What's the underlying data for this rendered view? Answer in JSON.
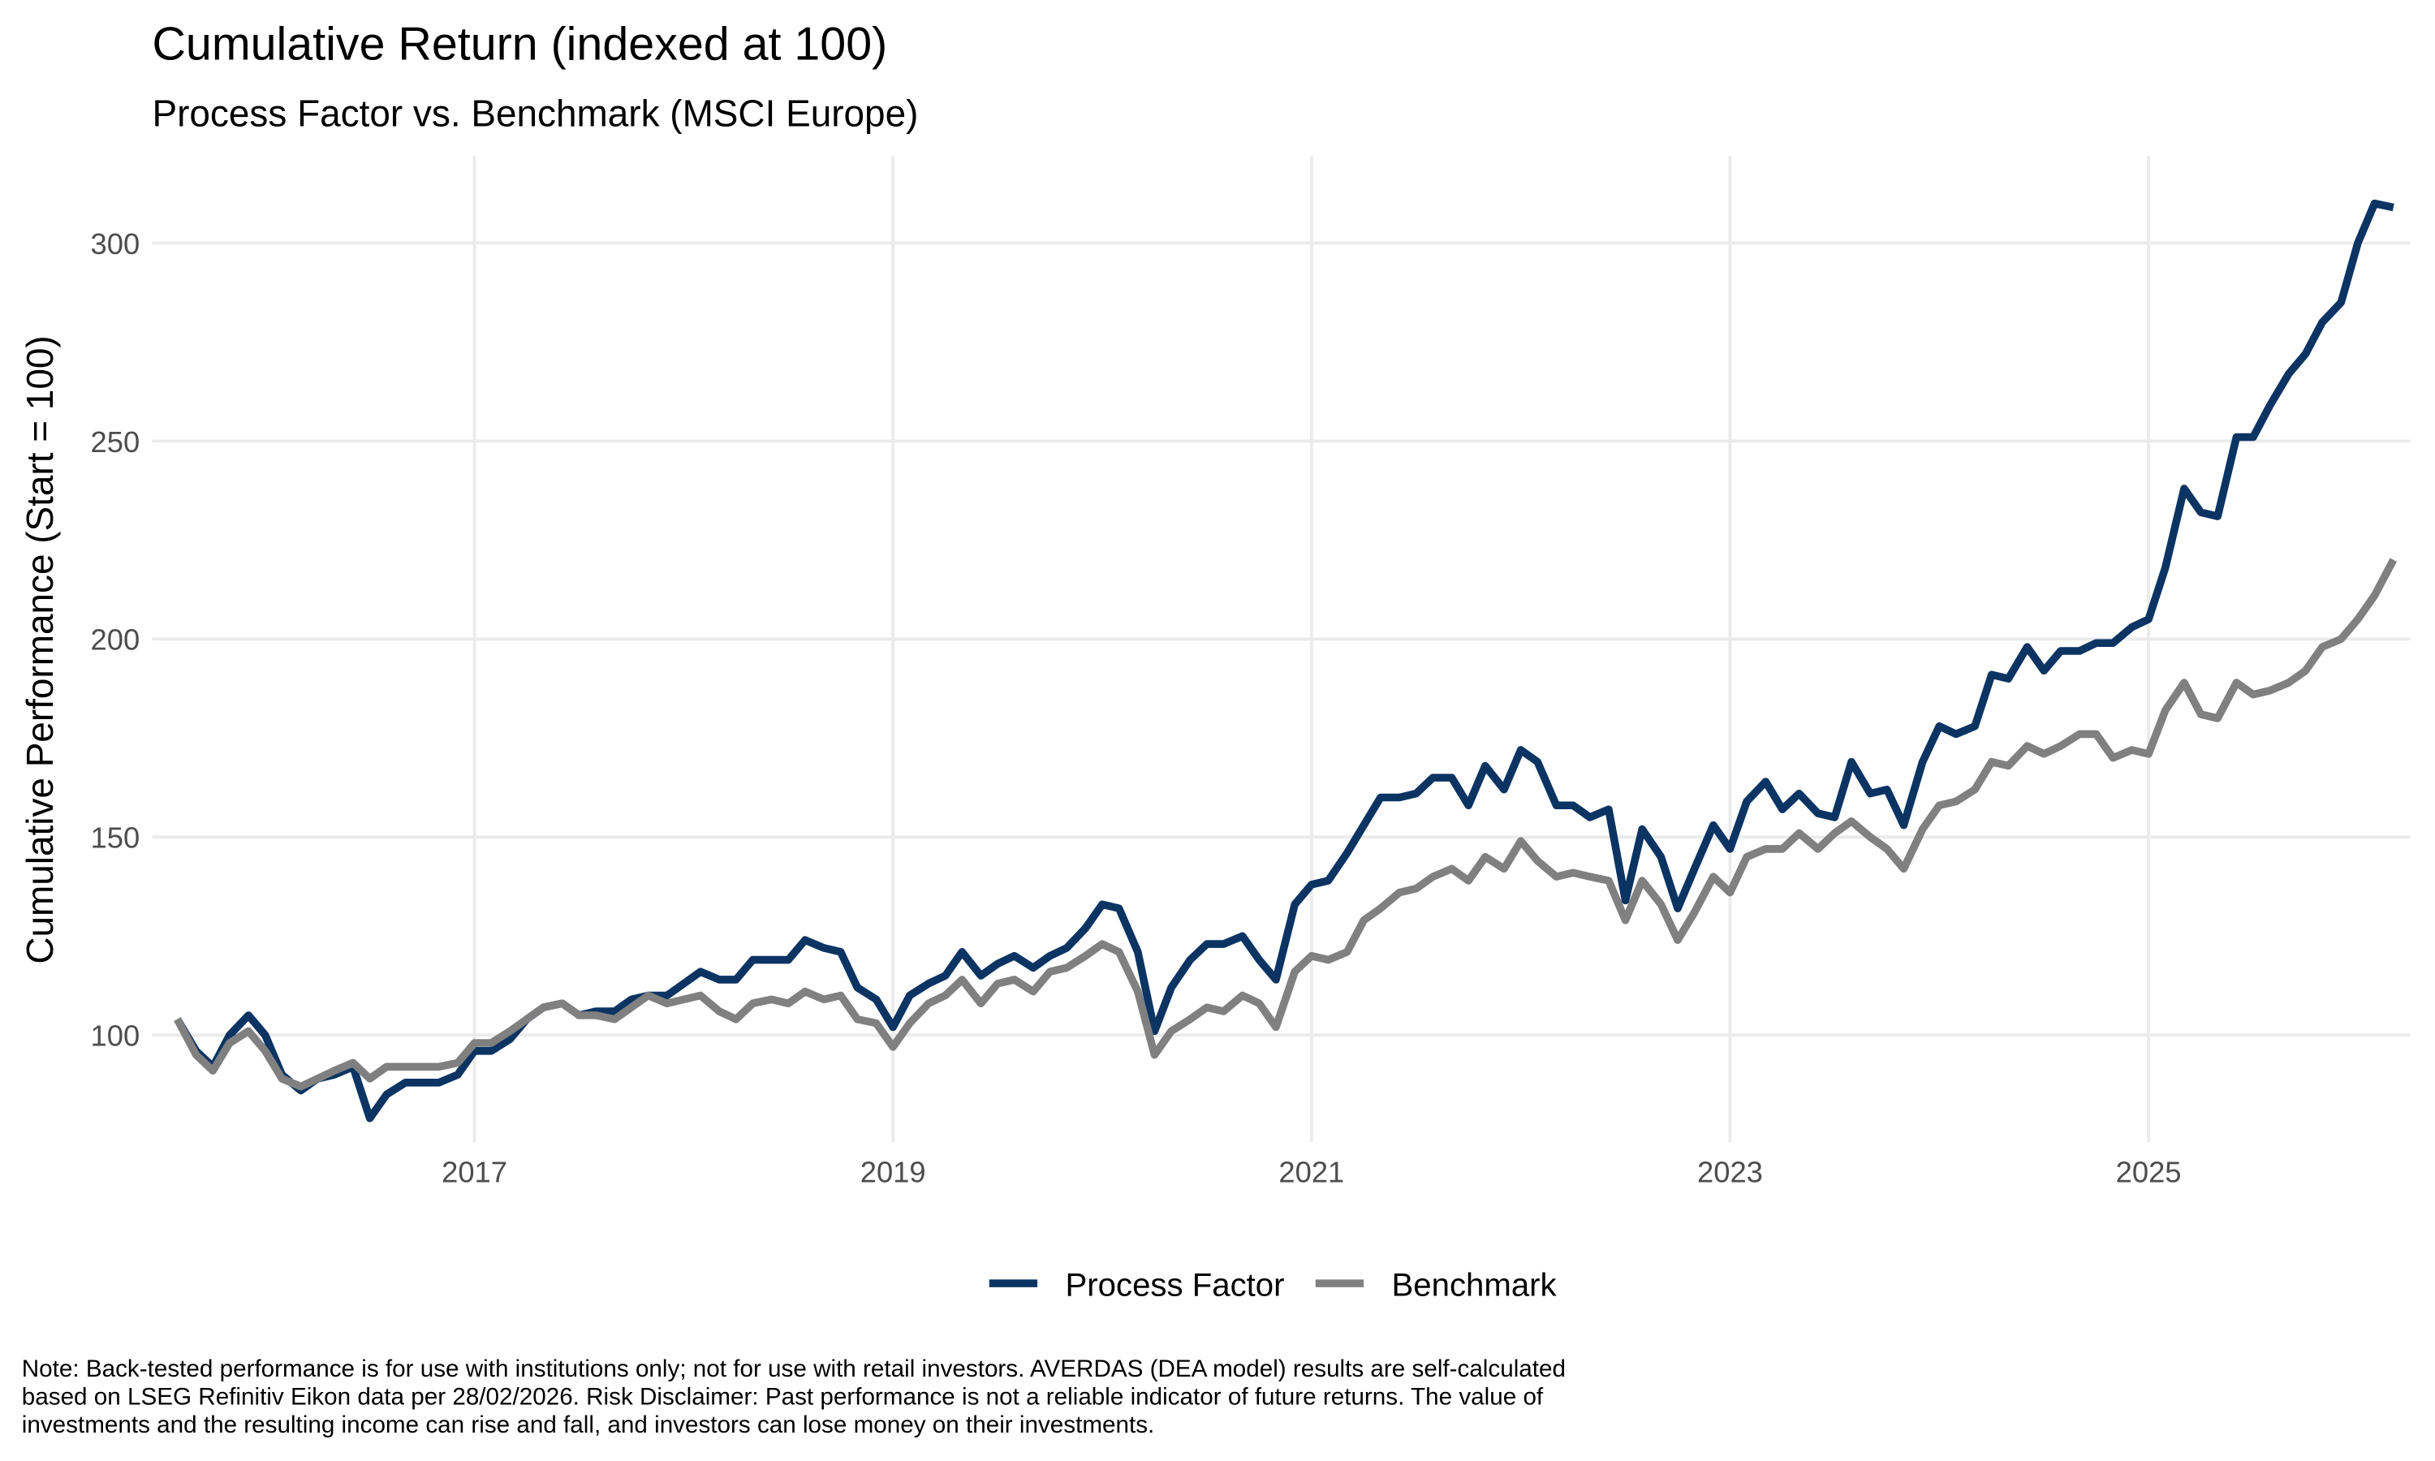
{
  "chart_data": {
    "type": "line",
    "title": "Cumulative Return (indexed at 100)",
    "subtitle": "Process Factor vs. Benchmark (MSCI Europe)",
    "y_label": "Cumulative Performance (Start = 100)",
    "caption": [
      "Note: Back-tested performance is for use with institutions only; not for use with retail investors. AVERDAS (DEA model) results are self-calculated",
      "based on LSEG Refinitiv Eikon data per 28/02/2026. Risk Disclaimer: Past performance is not a reliable indicator of future returns. The value of",
      "investments and the resulting income can rise and fall, and investors can lose money on their investments."
    ],
    "x": [
      2015.58,
      2015.67,
      2015.75,
      2015.83,
      2015.92,
      2016.0,
      2016.08,
      2016.17,
      2016.25,
      2016.33,
      2016.42,
      2016.5,
      2016.58,
      2016.67,
      2016.75,
      2016.83,
      2016.92,
      2017.0,
      2017.08,
      2017.17,
      2017.25,
      2017.33,
      2017.42,
      2017.5,
      2017.58,
      2017.67,
      2017.75,
      2017.83,
      2017.92,
      2018.0,
      2018.08,
      2018.17,
      2018.25,
      2018.33,
      2018.42,
      2018.5,
      2018.58,
      2018.67,
      2018.75,
      2018.83,
      2018.92,
      2019.0,
      2019.08,
      2019.17,
      2019.25,
      2019.33,
      2019.42,
      2019.5,
      2019.58,
      2019.67,
      2019.75,
      2019.83,
      2019.92,
      2020.0,
      2020.08,
      2020.17,
      2020.25,
      2020.33,
      2020.42,
      2020.5,
      2020.58,
      2020.67,
      2020.75,
      2020.83,
      2020.92,
      2021.0,
      2021.08,
      2021.17,
      2021.25,
      2021.33,
      2021.42,
      2021.5,
      2021.58,
      2021.67,
      2021.75,
      2021.83,
      2021.92,
      2022.0,
      2022.08,
      2022.17,
      2022.25,
      2022.33,
      2022.42,
      2022.5,
      2022.58,
      2022.67,
      2022.75,
      2022.83,
      2022.92,
      2023.0,
      2023.08,
      2023.17,
      2023.25,
      2023.33,
      2023.42,
      2023.5,
      2023.58,
      2023.67,
      2023.75,
      2023.83,
      2023.92,
      2024.0,
      2024.08,
      2024.17,
      2024.25,
      2024.33,
      2024.42,
      2024.5,
      2024.58,
      2024.67,
      2024.75,
      2024.83,
      2024.92,
      2025.0,
      2025.08,
      2025.17,
      2025.25,
      2025.33,
      2025.42,
      2025.5,
      2025.58,
      2025.67,
      2025.75,
      2025.83,
      2025.92,
      2026.0,
      2026.08,
      2026.17
    ],
    "series": [
      {
        "name": "Process Factor",
        "color": "#0b3463",
        "values": [
          104,
          96,
          92,
          100,
          105,
          100,
          90,
          86,
          89,
          90,
          92,
          79,
          85,
          88,
          88,
          88,
          90,
          96,
          96,
          99,
          104,
          107,
          108,
          105,
          106,
          106,
          109,
          110,
          110,
          113,
          116,
          114,
          114,
          119,
          119,
          119,
          124,
          122,
          121,
          112,
          109,
          102,
          110,
          113,
          115,
          121,
          115,
          118,
          120,
          117,
          120,
          122,
          127,
          133,
          132,
          121,
          101,
          112,
          119,
          123,
          123,
          125,
          119,
          114,
          133,
          138,
          139,
          146,
          153,
          160,
          160,
          161,
          165,
          165,
          158,
          168,
          162,
          172,
          169,
          158,
          158,
          155,
          157,
          134,
          152,
          145,
          132,
          142,
          153,
          147,
          159,
          164,
          157,
          161,
          156,
          155,
          169,
          161,
          162,
          153,
          169,
          178,
          176,
          178,
          191,
          190,
          198,
          192,
          197,
          197,
          199,
          199,
          203,
          205,
          218,
          238,
          232,
          231,
          251,
          251,
          259,
          267,
          272,
          280,
          285,
          300,
          310,
          309
        ]
      },
      {
        "name": "Benchmark",
        "color": "#808080",
        "values": [
          104,
          95,
          91,
          98,
          101,
          96,
          89,
          87,
          89,
          91,
          93,
          89,
          92,
          92,
          92,
          92,
          93,
          98,
          98,
          101,
          104,
          107,
          108,
          105,
          105,
          104,
          107,
          110,
          108,
          109,
          110,
          106,
          104,
          108,
          109,
          108,
          111,
          109,
          110,
          104,
          103,
          97,
          103,
          108,
          110,
          114,
          108,
          113,
          114,
          111,
          116,
          117,
          120,
          123,
          121,
          111,
          95,
          101,
          104,
          107,
          106,
          110,
          108,
          102,
          116,
          120,
          119,
          121,
          129,
          132,
          136,
          137,
          140,
          142,
          139,
          145,
          142,
          149,
          144,
          140,
          141,
          140,
          139,
          129,
          139,
          133,
          124,
          131,
          140,
          136,
          145,
          147,
          147,
          151,
          147,
          151,
          154,
          150,
          147,
          142,
          152,
          158,
          159,
          162,
          169,
          168,
          173,
          171,
          173,
          176,
          176,
          170,
          172,
          171,
          182,
          189,
          181,
          180,
          189,
          186,
          187,
          189,
          192,
          198,
          200,
          205,
          211,
          220
        ]
      }
    ],
    "xlim": [
      2015.46,
      2026.25
    ],
    "xticks": [
      2017,
      2019,
      2021,
      2023,
      2025
    ],
    "ylim": [
      73,
      322
    ],
    "yticks": [
      100,
      150,
      200,
      250,
      300
    ],
    "grid": true,
    "legend": "bottom"
  }
}
